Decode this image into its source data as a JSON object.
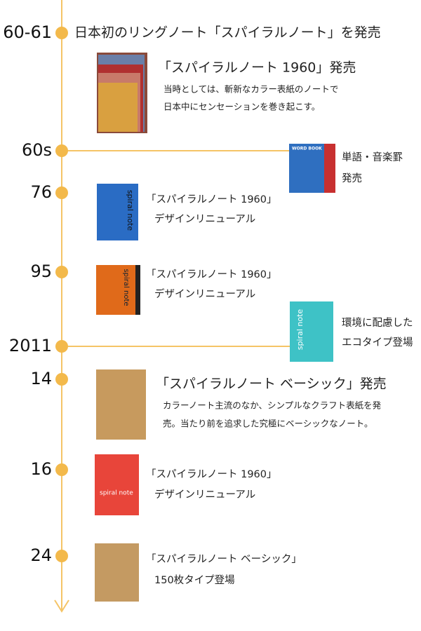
{
  "events": [
    {
      "year": "60-61",
      "headline": "日本初のリングノート「スパイラルノート」を発売",
      "title": "「スパイラルノート 1960」発売",
      "lines": [
        "当時としては、斬新なカラー表紙のノートで",
        "日本中にセンセーションを巻き起こす。"
      ]
    },
    {
      "year": "60s",
      "lines": [
        "単語・音楽罫",
        "発売"
      ],
      "cover": "WORD BOOK"
    },
    {
      "year": "76",
      "lines": [
        "「スパイラルノート 1960」",
        "デザインリニューアル"
      ],
      "cover": "spiral note"
    },
    {
      "year": "95",
      "lines": [
        "「スパイラルノート 1960」",
        "デザインリニューアル"
      ],
      "cover": "spiral note"
    },
    {
      "year": "2011",
      "lines": [
        "環境に配慮した",
        "エコタイプ登場"
      ],
      "cover": "spiral note"
    },
    {
      "year": "14",
      "title": "「スパイラルノート ベーシック」発売",
      "lines": [
        "カラーノート主流のなか、シンプルなクラフト表紙を発",
        "売。当たり前を追求した究極にベーシックなノート。"
      ]
    },
    {
      "year": "16",
      "lines": [
        "「スパイラルノート 1960」",
        "デザインリニューアル"
      ],
      "cover": "spiral note"
    },
    {
      "year": "24",
      "lines": [
        "「スパイラルノート ベーシック」",
        "150枚タイプ登場"
      ]
    }
  ]
}
